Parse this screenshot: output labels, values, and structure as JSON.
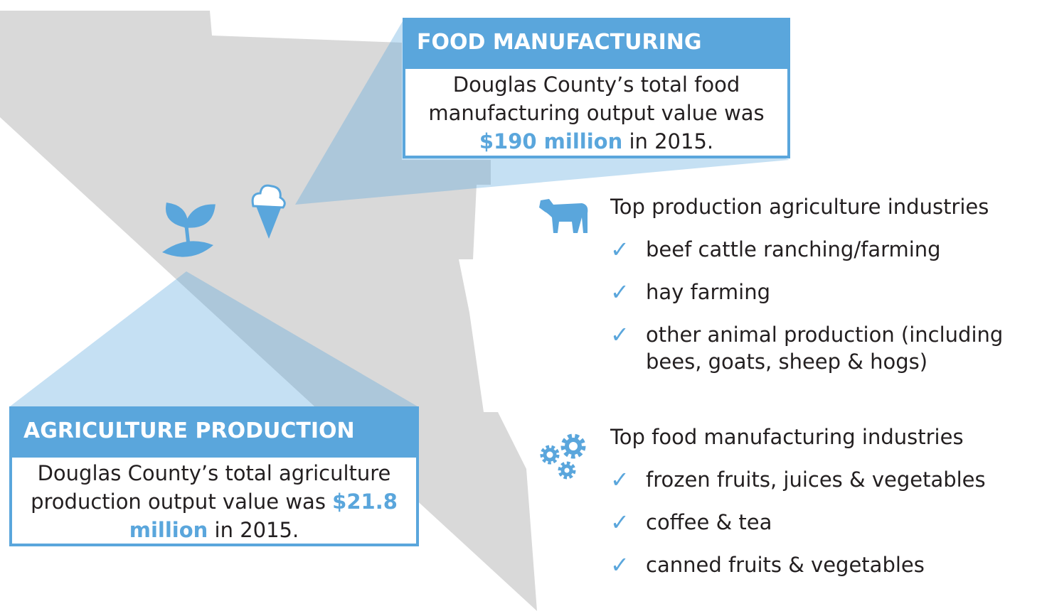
{
  "food_callout": {
    "title": "FOOD MANUFACTURING",
    "text": "Douglas County’s total food manufacturing output value was",
    "highlight": "$190 million",
    "suffix": "in 2015."
  },
  "agriculture_callout": {
    "title": "AGRICULTURE PRODUCTION",
    "text": "Douglas County’s total agriculture production output value was",
    "highlight": "$21.8 million",
    "suffix": "in 2015."
  },
  "production_list": {
    "heading": "Top production agriculture industries",
    "items": [
      "beef cattle ranching/farming",
      "hay farming",
      "other animal production (including bees, goats, sheep & hogs)"
    ]
  },
  "manufacturing_list": {
    "heading": "Top food manufacturing industries",
    "items": [
      "frozen fruits, juices & vegetables",
      "coffee & tea",
      "canned fruits & vegetables"
    ]
  }
}
